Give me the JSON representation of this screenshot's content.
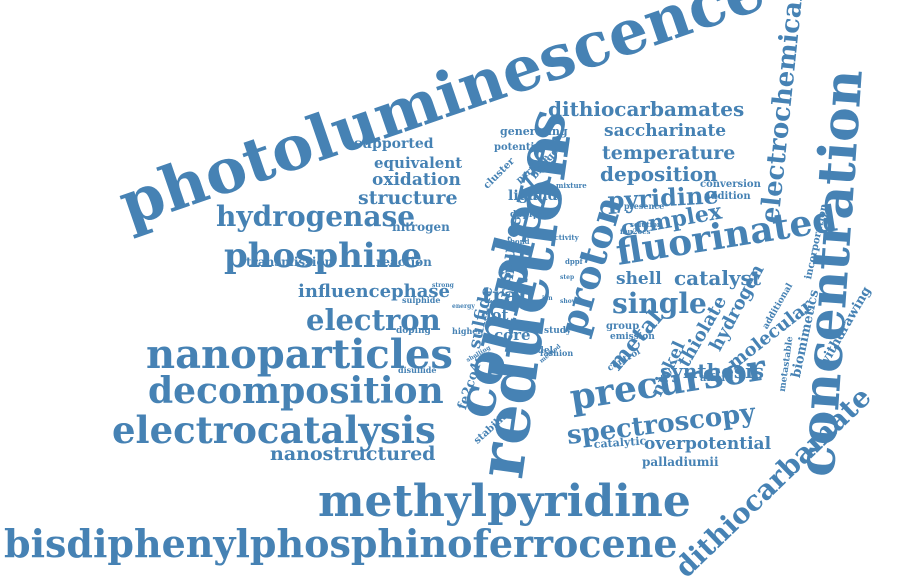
{
  "color": "#4682b4",
  "words": [
    "photoluminescence",
    "reduction",
    "complexes",
    "concentration",
    "methylpyridine",
    "bisdiphenylphosphinoferrocene",
    "dithiocarbamate",
    "nanoparticles",
    "electrocatalysis",
    "decomposition",
    "fluorinated",
    "precursor",
    "phosphine",
    "proton",
    "hydrogenase",
    "electrochemical",
    "dithiocarbamates",
    "electron",
    "spectroscopy",
    "single",
    "pyridine",
    "complex",
    "deposition",
    "temperature",
    "saccharinate",
    "catalyst",
    "shell",
    "nanostructured",
    "overpotential",
    "synthesis",
    "influencephase",
    "tran",
    "structure",
    "oxidation",
    "equivalent",
    "supported",
    "metal",
    "source",
    "thiolate",
    "hydrogen",
    "molecular",
    "nickel",
    "sulfide",
    "iron",
    "core",
    "dot",
    "fe2co4c",
    "ligand",
    "biomimetics",
    "withdrawing",
    "incorporation",
    "nitrogen",
    "transmission",
    "reaction",
    "palladiumii",
    "catalytic",
    "stability",
    "cluster",
    "bridge",
    "particle",
    "generating",
    "potential",
    "conversion",
    "addition",
    "presence",
    "afford",
    "dppfμ",
    "mixture",
    "ibu2ocs",
    "solution",
    "activity",
    "bond",
    "dppf",
    "group",
    "emission",
    "control",
    "metastable",
    "additional",
    "model",
    "fashion",
    "study",
    "pure",
    "higher",
    "doping",
    "sulphide",
    "energy",
    "strong",
    "disulfide",
    "shelling",
    "method",
    "step",
    "ion",
    "show"
  ]
}
